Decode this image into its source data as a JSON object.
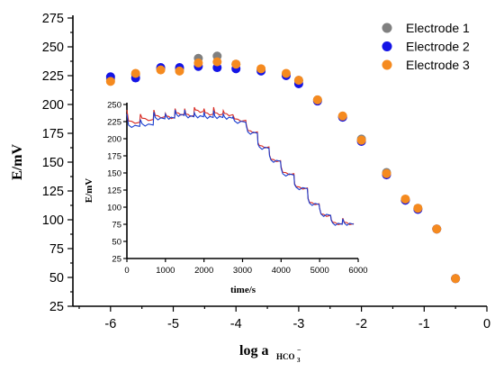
{
  "chart_data": [
    {
      "type": "scatter",
      "title": "",
      "xlabel_main": "log a",
      "xlabel_sub": "HCO",
      "xlabel_subsub": "3",
      "xlabel_sup": "−",
      "ylabel": "E/mV",
      "xlim": [
        -6.6,
        0
      ],
      "ylim": [
        25,
        275
      ],
      "x_ticks": [
        -6,
        -5,
        -4,
        -3,
        -2,
        -1,
        0
      ],
      "x_tick_labels": [
        "-6",
        "-5",
        "-4",
        "-3",
        "-2",
        "-1",
        "0"
      ],
      "y_ticks": [
        25,
        50,
        75,
        100,
        125,
        150,
        175,
        200,
        225,
        250,
        275
      ],
      "y_tick_labels": [
        "25",
        "50",
        "75",
        "100",
        "125",
        "150",
        "175",
        "200",
        "225",
        "250",
        "275"
      ],
      "legend_position": "top-right",
      "series": [
        {
          "name": "Electrode 1",
          "color": "#808080",
          "x": [
            -6.0,
            -5.6,
            -5.2,
            -4.9,
            -4.6,
            -4.3,
            -4.0,
            -3.6,
            -3.2,
            -3.0,
            -2.7,
            -2.3,
            -2.0,
            -1.6,
            -1.3,
            -1.1,
            -0.8,
            -0.5
          ],
          "y": [
            222,
            226,
            231,
            231,
            240,
            242,
            235,
            230,
            226,
            221,
            204,
            189,
            170,
            141,
            117,
            110,
            92,
            49
          ]
        },
        {
          "name": "Electrode 2",
          "color": "#1414e6",
          "x": [
            -6.0,
            -5.6,
            -5.2,
            -4.9,
            -4.6,
            -4.3,
            -4.0,
            -3.6,
            -3.2,
            -3.0,
            -2.7,
            -2.3,
            -2.0,
            -1.6,
            -1.3,
            -1.1,
            -0.8,
            -0.5
          ],
          "y": [
            224,
            223,
            232,
            232,
            233,
            232,
            231,
            229,
            225,
            218,
            203,
            189,
            168,
            139,
            117,
            109,
            92,
            49
          ]
        },
        {
          "name": "Electrode 3",
          "color": "#f58a1f",
          "x": [
            -6.0,
            -5.6,
            -5.2,
            -4.9,
            -4.6,
            -4.3,
            -4.0,
            -3.6,
            -3.2,
            -3.0,
            -2.7,
            -2.3,
            -2.0,
            -1.6,
            -1.3,
            -1.1,
            -0.8,
            -0.5
          ],
          "y": [
            220,
            227,
            230,
            229,
            236,
            237,
            235,
            231,
            227,
            221,
            204,
            190,
            169,
            140,
            118,
            110,
            92,
            49
          ]
        }
      ]
    },
    {
      "type": "line",
      "title": "",
      "xlabel": "time/s",
      "ylabel": "E/mV",
      "xlim": [
        0,
        6000
      ],
      "ylim": [
        25,
        250
      ],
      "x_ticks": [
        0,
        1000,
        2000,
        3000,
        4000,
        5000,
        6000
      ],
      "x_tick_labels": [
        "0",
        "1000",
        "2000",
        "3000",
        "4000",
        "5000",
        "6000"
      ],
      "y_ticks": [
        25,
        50,
        75,
        100,
        125,
        150,
        175,
        200,
        225,
        250
      ],
      "y_tick_labels": [
        "25",
        "50",
        "75",
        "100",
        "125",
        "150",
        "175",
        "200",
        "225",
        "250"
      ],
      "step_times": [
        0,
        350,
        700,
        1000,
        1250,
        1500,
        1750,
        2000,
        2250,
        2500,
        2750,
        3100,
        3400,
        3700,
        4000,
        4350,
        4700,
        5000,
        5300,
        5600
      ],
      "series": [
        {
          "color": "#d8281f",
          "x": [
            0,
            350,
            700,
            1000,
            1250,
            1500,
            1750,
            2000,
            2250,
            2500,
            2750,
            3100,
            3400,
            3700,
            4000,
            4350,
            4700,
            5000,
            5300,
            5600
          ],
          "y": [
            224,
            228,
            232,
            231,
            236,
            234,
            240,
            236,
            236,
            235,
            227,
            210,
            188,
            168,
            149,
            128,
            105,
            88,
            76,
            76
          ]
        },
        {
          "color": "#1a3dcf",
          "x": [
            0,
            350,
            700,
            1000,
            1250,
            1500,
            1750,
            2000,
            2250,
            2500,
            2750,
            3100,
            3400,
            3700,
            4000,
            4350,
            4700,
            5000,
            5300,
            5600
          ],
          "y": [
            218,
            220,
            229,
            230,
            234,
            232,
            232,
            231,
            231,
            230,
            224,
            208,
            186,
            167,
            147,
            127,
            104,
            88,
            75,
            75
          ]
        }
      ]
    }
  ]
}
